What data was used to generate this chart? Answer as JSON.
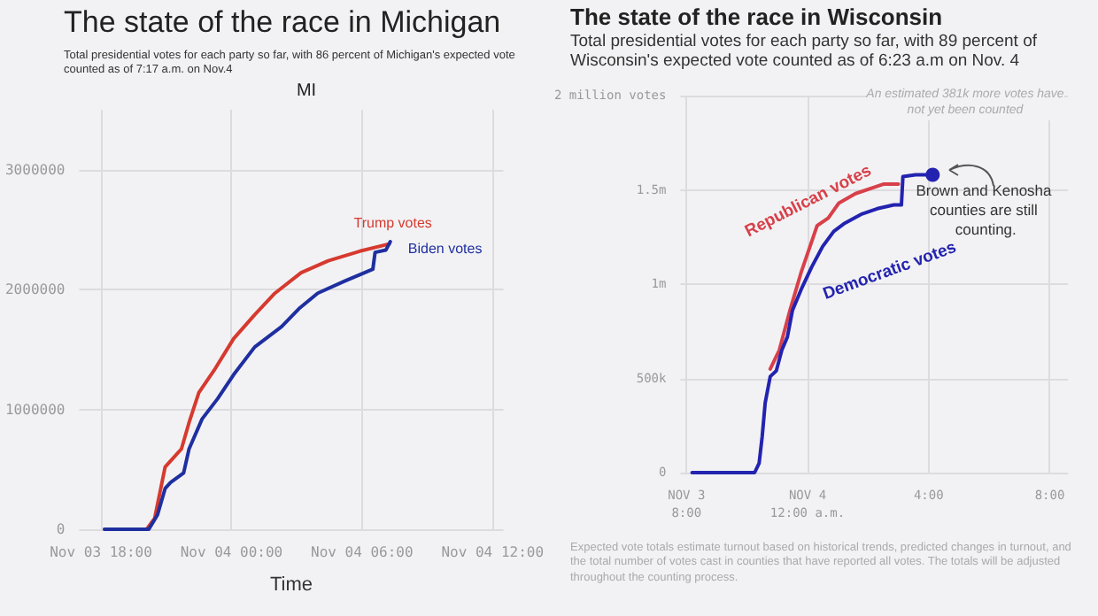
{
  "chart_data": [
    {
      "type": "line",
      "title": "The state of the race in Michigan",
      "subtitle": "Total presidential votes for each party so far, with 86 percent of Michigan's expected vote counted as of 7:17 a.m. on Nov.4",
      "xlabel": "Time",
      "annotations": [
        "MI"
      ],
      "xlim": [
        "--11-03T17:00",
        "--11-04T12:30"
      ],
      "xticks": [
        {
          "value": "--11-03T18:00",
          "label": "Nov 03 18:00"
        },
        {
          "value": "--11-04T00:00",
          "label": "Nov 04 00:00"
        },
        {
          "value": "--11-04T06:00",
          "label": "Nov 04 06:00"
        },
        {
          "value": "--11-04T12:00",
          "label": "Nov 04 12:00"
        }
      ],
      "ylim": [
        0,
        3500000
      ],
      "yticks": [
        0,
        1000000,
        2000000,
        3000000
      ],
      "grid": true,
      "marker": "none",
      "line_style": "solid",
      "series": [
        {
          "name": "Trump votes",
          "color": "#d63a2f",
          "x": [
            "--11-03T18:10",
            "--11-03T20:06",
            "--11-03T20:28",
            "--11-03T20:57",
            "--11-03T21:18",
            "--11-03T21:42",
            "--11-03T22:03",
            "--11-03T22:30",
            "--11-03T23:15",
            "--11-04T00:06",
            "--11-04T01:04",
            "--11-04T02:00",
            "--11-04T03:12",
            "--11-04T04:27",
            "--11-04T05:54",
            "--11-04T07:15"
          ],
          "values": [
            0,
            0,
            90000,
            520000,
            590000,
            670000,
            890000,
            1140000,
            1340000,
            1590000,
            1790000,
            1970000,
            2140000,
            2240000,
            2320000,
            2380000
          ]
        },
        {
          "name": "Biden votes",
          "color": "#1f2fa0",
          "x": [
            "--11-03T18:10",
            "--11-03T20:12",
            "--11-03T20:36",
            "--11-03T20:57",
            "--11-03T21:12",
            "--11-03T21:48",
            "--11-03T22:03",
            "--11-03T22:39",
            "--11-03T23:22",
            "--11-04T00:06",
            "--11-04T01:04",
            "--11-04T02:18",
            "--11-04T03:06",
            "--11-04T03:58",
            "--11-04T05:12",
            "--11-04T06:30",
            "--11-04T06:36",
            "--11-04T07:06",
            "--11-04T07:18"
          ],
          "values": [
            0,
            0,
            120000,
            340000,
            390000,
            470000,
            670000,
            920000,
            1090000,
            1290000,
            1520000,
            1690000,
            1840000,
            1970000,
            2070000,
            2170000,
            2310000,
            2330000,
            2400000
          ]
        }
      ]
    },
    {
      "type": "line",
      "title": "The state of the race in Wisconsin",
      "subtitle": "Total presidential votes for each party so far, with 89 percent of Wisconsin's expected vote counted as of 6:23 a.m on Nov. 4",
      "annotations": [
        "An estimated 381k more votes have not yet been counted",
        {
          "text": "Brown and Kenosha counties are still counting.",
          "x": "--11-04T04:08",
          "y": 1580000
        },
        "Expected vote totals estimate turnout based on historical trends, predicted changes in turnout, and the total number of votes cast in counties that have reported all votes. The totals will be adjusted throughout the counting process."
      ],
      "xlim": [
        "--11-03T19:48",
        "--11-04T08:36"
      ],
      "xticks": [
        {
          "value": "--11-03T20:00",
          "label": "NOV 3\n8:00"
        },
        {
          "value": "--11-04T00:00",
          "label": "NOV 4\n12:00 a.m."
        },
        {
          "value": "--11-04T04:00",
          "label": "4:00"
        },
        {
          "value": "--11-04T08:00",
          "label": "8:00"
        }
      ],
      "ylim": [
        0,
        2000000
      ],
      "yticks": [
        0,
        {
          "value": 500000,
          "label": "500k"
        },
        {
          "value": 1000000,
          "label": "1m"
        },
        {
          "value": 1500000,
          "label": "1.5m"
        },
        {
          "value": 2000000,
          "label": "2 million votes"
        }
      ],
      "grid": true,
      "marker": "none",
      "line_style": "solid",
      "series": [
        {
          "name": "Republican votes",
          "color": "#d8404a",
          "x": [
            "--11-03T22:46",
            "--11-03T23:04",
            "--11-03T23:25",
            "--11-03T23:47",
            "--11-04T00:19",
            "--11-04T00:41",
            "--11-04T01:02",
            "--11-04T01:35",
            "--11-04T02:08",
            "--11-04T02:30",
            "--11-04T03:00"
          ],
          "values": [
            550000,
            650000,
            860000,
            1060000,
            1310000,
            1350000,
            1430000,
            1480000,
            1510000,
            1530000,
            1530000
          ]
        },
        {
          "name": "Democratic votes",
          "color": "#2323b0",
          "x": [
            "--11-03T20:11",
            "--11-03T22:15",
            "--11-03T22:24",
            "--11-03T22:30",
            "--11-03T22:36",
            "--11-03T22:46",
            "--11-03T22:58",
            "--11-03T23:09",
            "--11-03T23:20",
            "--11-03T23:30",
            "--11-03T23:47",
            "--11-04T00:08",
            "--11-04T00:30",
            "--11-04T00:52",
            "--11-04T01:12",
            "--11-04T01:46",
            "--11-04T02:18",
            "--11-04T02:51",
            "--11-04T03:06",
            "--11-04T03:09",
            "--11-04T03:34",
            "--11-04T04:08"
          ],
          "values": [
            0,
            0,
            50000,
            190000,
            370000,
            510000,
            540000,
            650000,
            720000,
            860000,
            970000,
            1090000,
            1200000,
            1280000,
            1320000,
            1370000,
            1400000,
            1420000,
            1420000,
            1570000,
            1580000,
            1580000
          ]
        }
      ]
    }
  ]
}
